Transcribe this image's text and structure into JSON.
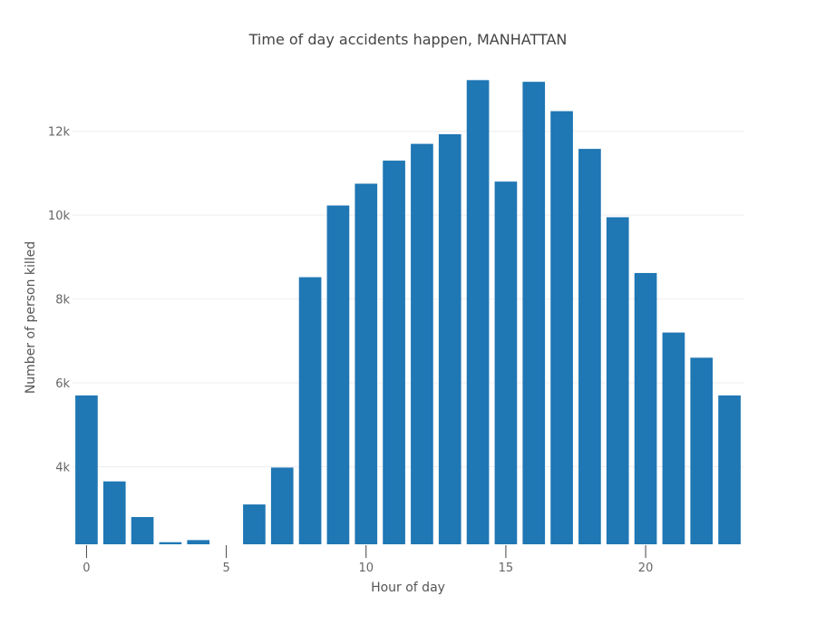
{
  "chart_data": {
    "type": "bar",
    "title": "Time of day accidents happen, MANHATTAN",
    "xlabel": "Hour of day",
    "ylabel": "Number of person killed",
    "categories": [
      0,
      1,
      2,
      3,
      4,
      5,
      6,
      7,
      8,
      9,
      10,
      11,
      12,
      13,
      14,
      15,
      16,
      17,
      18,
      19,
      20,
      21,
      22,
      23
    ],
    "values": [
      5700,
      3650,
      2800,
      2200,
      2250,
      2050,
      3100,
      3980,
      8520,
      10230,
      10750,
      11300,
      11700,
      11930,
      13220,
      10800,
      13180,
      12480,
      11580,
      9950,
      8620,
      7200,
      6600,
      5700
    ],
    "xlim": [
      -0.5,
      23.5
    ],
    "ylim": [
      2150,
      13400
    ],
    "x_ticks": [
      0,
      5,
      10,
      15,
      20
    ],
    "x_tick_labels": [
      "0",
      "5",
      "10",
      "15",
      "20"
    ],
    "y_ticks": [
      4000,
      6000,
      8000,
      10000,
      12000
    ],
    "y_tick_labels": [
      "4k",
      "6k",
      "8k",
      "10k",
      "12k"
    ],
    "bar_color": "#1f77b4",
    "grid": true
  }
}
